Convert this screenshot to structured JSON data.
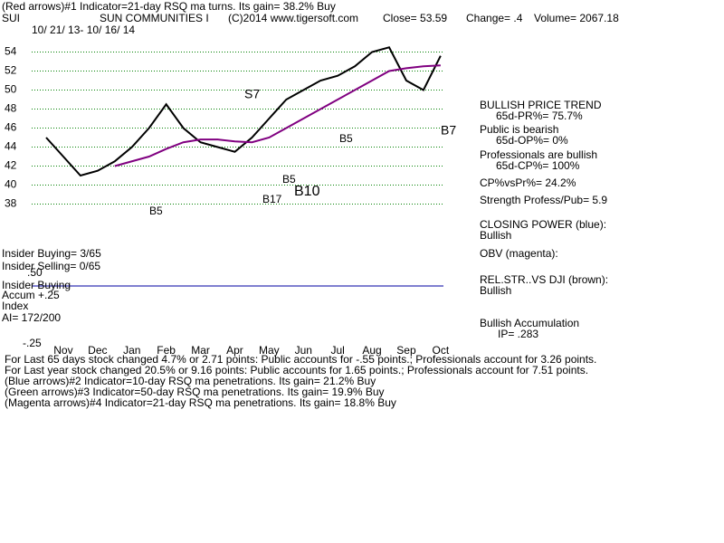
{
  "header": {
    "line1": "(Red arrows)#1 Indicator=21-day RSQ ma turns. Its gain= 38.2% Buy",
    "symbol": "SUI",
    "company": "SUN COMMUNITIES I",
    "copyright": "(C)2014 www.tigersoft.com",
    "close": "Close= 53.59",
    "change": "Change= .4",
    "volume": "Volume= 2067.18",
    "dates": "10/ 21/ 13- 10/ 16/ 14"
  },
  "side": [
    "BULLISH PRICE TREND",
    "65d-PR%= 75.7%",
    "Public is bearish",
    "65d-OP%= 0%",
    "Professionals are bullish",
    "65d-CP%= 100%",
    "CP%vsPr%= 24.2%",
    "Strength Profess/Pub= 5.9",
    "CLOSING POWER (blue):",
    "Bullish",
    "OBV (magenta):",
    "REL.STR..VS DJI (brown):",
    "Bullish",
    "Bullish Accumulation",
    "IP= .283"
  ],
  "left": [
    "Insider Buying= 3/65",
    "Insider Selling= 0/65",
    "Insider Buying",
    "Accum +.25",
    "Index",
    "AI= 172/200",
    ".50",
    "-.25"
  ],
  "footer": [
    "For Last 65 days stock changed  4.7% or  2.71 points:  Public accounts for -.55 points.;  Professionals account for  3.26 points.",
    "For Last year stock changed  20.5% or  9.16 points:  Public accounts for  1.65 points.;  Professionals account for  7.51 points.",
    "(Blue arrows)#2 Indicator=10-day RSQ ma penetrations. Its gain= 21.2% Buy",
    "(Green arrows)#3 Indicator=50-day RSQ ma penetrations. Its gain= 19.9% Buy",
    "(Magenta arrows)#4 Indicator=21-day RSQ ma penetrations. Its gain= 18.8% Buy"
  ],
  "chart_data": {
    "type": "line",
    "categories": [
      null,
      "Nov",
      null,
      "Dec",
      null,
      "Jan",
      null,
      "Feb",
      null,
      "Mar",
      null,
      "Apr",
      null,
      "May",
      null,
      "Jun",
      null,
      "Jul",
      null,
      "Aug",
      null,
      "Sep",
      null,
      "Oct"
    ],
    "series": [
      {
        "name": "Close",
        "color": "#000000",
        "values": [
          45,
          43,
          41,
          41.5,
          42.5,
          44,
          46,
          48.5,
          46,
          44.5,
          44,
          43.5,
          45,
          47,
          49,
          50,
          51,
          51.5,
          52.5,
          54,
          54.5,
          51,
          50,
          53.6
        ]
      },
      {
        "name": "MA",
        "color": "#800080",
        "values": [
          null,
          null,
          null,
          null,
          42,
          42.5,
          43,
          43.8,
          44.5,
          44.8,
          44.8,
          44.6,
          44.5,
          45,
          46,
          47,
          48,
          49,
          50,
          51,
          52,
          52.3,
          52.5,
          52.6
        ]
      }
    ],
    "ylim": [
      37,
      58
    ],
    "yticks": [
      38,
      40,
      42,
      44,
      46,
      48,
      50,
      52,
      54
    ],
    "grid": true,
    "annotations": [
      "S7",
      "B5",
      "B5",
      "B17",
      "B10",
      "B5",
      "B7"
    ]
  }
}
